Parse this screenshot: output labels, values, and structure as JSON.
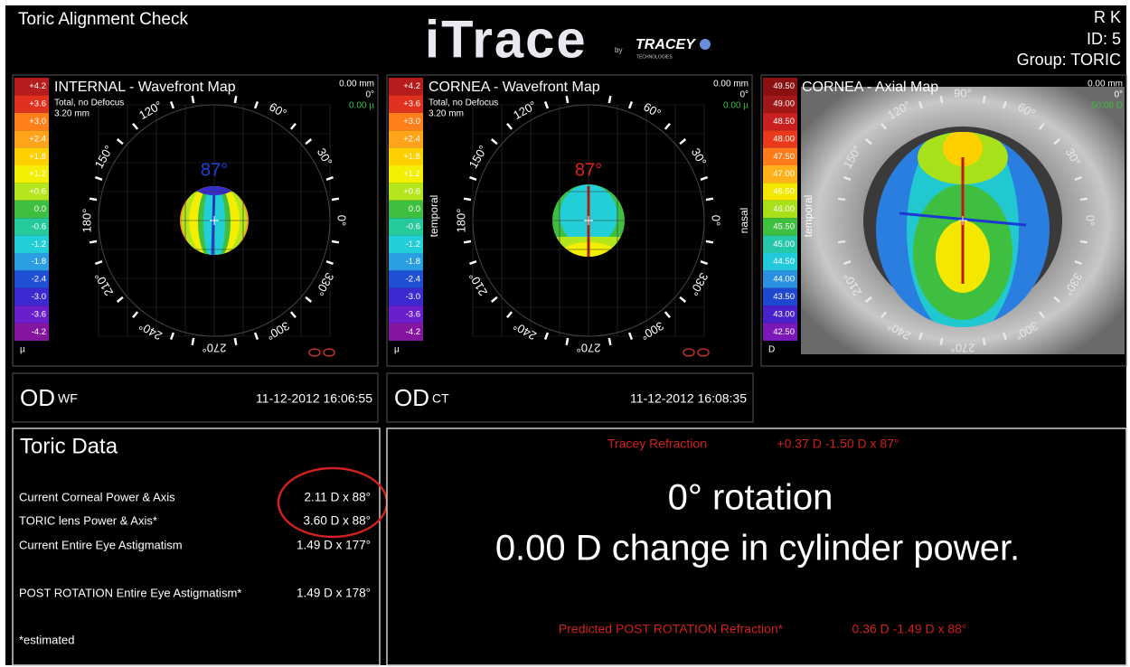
{
  "header": {
    "title": "Toric Alignment Check",
    "logo": "iTrace",
    "logo_by": "by",
    "brand": "TRACEY",
    "brand_sub": "TECHNOLOGIES",
    "patient": "R  K",
    "id": "ID:  5",
    "group": "Group:  TORIC"
  },
  "maps": [
    {
      "title": "INTERNAL - Wavefront Map",
      "subtitle": "Total, no Defocus",
      "size": "3.20 mm",
      "offset": "0.00 mm",
      "rotation": "0°",
      "value": "0.00 µ",
      "axis": "87°",
      "scale": [
        "+4.2",
        "+3.6",
        "+3.0",
        "+2.4",
        "+1.8",
        "+1.2",
        "+0.6",
        "0.0",
        "-0.6",
        "-1.2",
        "-1.8",
        "-2.4",
        "-3.0",
        "-3.6",
        "-4.2"
      ],
      "unit": "µ",
      "angles": [
        "0°",
        "30°",
        "60°",
        "120°",
        "150°",
        "180°",
        "210°",
        "240°",
        "270°",
        "300°",
        "330°"
      ]
    },
    {
      "title": "CORNEA - Wavefront Map",
      "subtitle": "Total, no Defocus",
      "size": "3.20 mm",
      "offset": "0.00 mm",
      "rotation": "0°",
      "value": "0.00 µ",
      "axis": "87°",
      "scale": [
        "+4.2",
        "+3.6",
        "+3.0",
        "+2.4",
        "+1.8",
        "+1.2",
        "+0.6",
        "0.0",
        "-0.6",
        "-1.2",
        "-1.8",
        "-2.4",
        "-3.0",
        "-3.6",
        "-4.2"
      ],
      "unit": "µ",
      "angles": [
        "0°",
        "30°",
        "60°",
        "120°",
        "150°",
        "180°",
        "210°",
        "240°",
        "270°",
        "300°",
        "330°"
      ],
      "left_side": "temporal",
      "right_side": "nasal"
    },
    {
      "title": "CORNEA - Axial Map",
      "offset": "0.00 mm",
      "rotation": "0°",
      "value": "50.08 D",
      "scale": [
        "49.50",
        "49.00",
        "48.50",
        "48.00",
        "47.50",
        "47.00",
        "46.50",
        "46.00",
        "45.50",
        "45.00",
        "44.50",
        "44.00",
        "43.50",
        "43.00",
        "42.50"
      ],
      "unit": "D",
      "angles": [
        "0°",
        "30°",
        "60°",
        "90°",
        "120°",
        "150°",
        "210°",
        "240°",
        "270°",
        "300°",
        "330°"
      ],
      "left_side": "temporal"
    }
  ],
  "exams": [
    {
      "eye": "OD",
      "kind": "WF",
      "datetime": "11-12-2012  16:06:55"
    },
    {
      "eye": "OD",
      "kind": "CT",
      "datetime": "11-12-2012  16:08:35"
    }
  ],
  "toric_data": {
    "title": "Toric Data",
    "rows": [
      {
        "label": "Current Corneal Power & Axis",
        "value": "2.11 D x 88°"
      },
      {
        "label": "TORIC lens Power & Axis*",
        "value": "3.60 D x 88°"
      },
      {
        "label": "Current Entire Eye Astigmatism",
        "value": "1.49 D x 177°"
      },
      {
        "label": "POST ROTATION Entire Eye Astigmatism*",
        "value": "1.49 D x 178°"
      }
    ],
    "note": "*estimated"
  },
  "result": {
    "refraction_label": "Tracey Refraction",
    "refraction": "+0.37 D -1.50 D x 87°",
    "rotation": "0° rotation",
    "change": "0.00 D change in cylinder power.",
    "predicted_label": "Predicted POST ROTATION Refraction*",
    "predicted": "0.36 D  -1.49 D x 88°"
  }
}
